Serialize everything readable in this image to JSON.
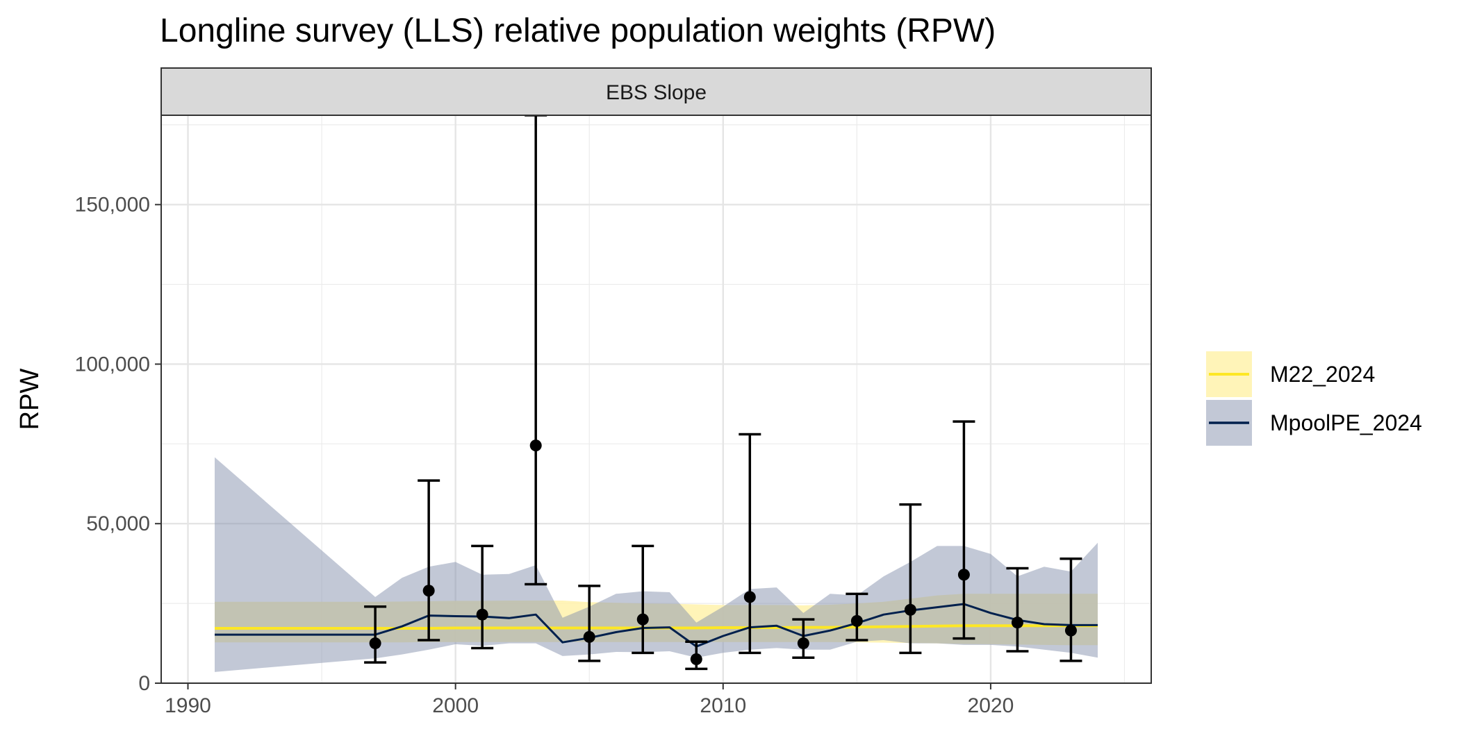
{
  "chart_data": {
    "type": "line",
    "title": "Longline survey (LLS) relative population weights (RPW)",
    "facet": "EBS Slope",
    "xlabel": "",
    "ylabel": "RPW",
    "xlim": [
      1989,
      2026
    ],
    "ylim": [
      0,
      178000
    ],
    "x_ticks": [
      1990,
      2000,
      2010,
      2020
    ],
    "x_tick_labels": [
      "1990",
      "2000",
      "2010",
      "2020"
    ],
    "y_ticks": [
      0,
      50000,
      100000,
      150000
    ],
    "y_tick_labels": [
      "0",
      "50,000",
      "100,000",
      "150,000"
    ],
    "grid": true,
    "legend_position": "right",
    "observed": [
      {
        "x": 1997,
        "y": 12500,
        "lo": 6500,
        "hi": 24000
      },
      {
        "x": 1999,
        "y": 29000,
        "lo": 13500,
        "hi": 63500
      },
      {
        "x": 2001,
        "y": 21500,
        "lo": 11000,
        "hi": 43000
      },
      {
        "x": 2003,
        "y": 74500,
        "lo": 31000,
        "hi": 178000
      },
      {
        "x": 2005,
        "y": 14500,
        "lo": 7000,
        "hi": 30500
      },
      {
        "x": 2007,
        "y": 20000,
        "lo": 9500,
        "hi": 43000
      },
      {
        "x": 2009,
        "y": 7500,
        "lo": 4500,
        "hi": 13000
      },
      {
        "x": 2011,
        "y": 27000,
        "lo": 9500,
        "hi": 78000
      },
      {
        "x": 2013,
        "y": 12500,
        "lo": 8000,
        "hi": 20000
      },
      {
        "x": 2015,
        "y": 19500,
        "lo": 13500,
        "hi": 28000
      },
      {
        "x": 2017,
        "y": 23000,
        "lo": 9500,
        "hi": 56000
      },
      {
        "x": 2019,
        "y": 34000,
        "lo": 14000,
        "hi": 82000
      },
      {
        "x": 2021,
        "y": 19000,
        "lo": 10000,
        "hi": 36000
      },
      {
        "x": 2023,
        "y": 16500,
        "lo": 7000,
        "hi": 39000
      }
    ],
    "series": [
      {
        "name": "M22_2024",
        "color": "#fde725",
        "fill": "#fff3b0",
        "x": [
          1991,
          1997,
          1998,
          1999,
          2000,
          2001,
          2002,
          2003,
          2004,
          2005,
          2006,
          2007,
          2008,
          2009,
          2010,
          2011,
          2012,
          2013,
          2014,
          2015,
          2016,
          2017,
          2018,
          2019,
          2020,
          2021,
          2022,
          2023,
          2024
        ],
        "values": [
          17200,
          17200,
          17200,
          17200,
          17300,
          17300,
          17300,
          17300,
          17300,
          17300,
          17300,
          17300,
          17300,
          17300,
          17400,
          17400,
          17400,
          17500,
          17500,
          17600,
          17700,
          17800,
          17900,
          18000,
          18000,
          18000,
          18000,
          18000,
          18000
        ],
        "lower": [
          12800,
          12800,
          12800,
          12900,
          12900,
          12900,
          12900,
          12900,
          12900,
          12900,
          12900,
          12900,
          12900,
          12900,
          12900,
          12900,
          12900,
          12900,
          12900,
          12800,
          12700,
          12600,
          12500,
          12300,
          12200,
          12100,
          12000,
          11900,
          11900
        ],
        "upper": [
          25500,
          25500,
          25600,
          25700,
          25800,
          25800,
          25900,
          25900,
          25900,
          25400,
          25200,
          25000,
          24900,
          24700,
          24500,
          24500,
          24500,
          24400,
          24600,
          25000,
          25500,
          26500,
          27500,
          28000,
          28000,
          28000,
          28000,
          28000,
          28000
        ]
      },
      {
        "name": "MpoolPE_2024",
        "color": "#00204d",
        "fill": "#8592ad",
        "x": [
          1991,
          1997,
          1998,
          1999,
          2000,
          2001,
          2002,
          2003,
          2004,
          2005,
          2006,
          2007,
          2008,
          2009,
          2010,
          2011,
          2012,
          2013,
          2014,
          2015,
          2016,
          2017,
          2018,
          2019,
          2020,
          2021,
          2022,
          2023,
          2024
        ],
        "values": [
          15200,
          15200,
          17800,
          21200,
          21000,
          20900,
          20400,
          21500,
          12800,
          14200,
          16000,
          17300,
          17500,
          11500,
          14800,
          17500,
          18000,
          14800,
          16500,
          18800,
          21500,
          22800,
          23800,
          24800,
          22000,
          19800,
          18500,
          18200,
          18200
        ],
        "lower": [
          3500,
          7800,
          9000,
          10500,
          12200,
          11700,
          12500,
          12500,
          8500,
          9000,
          9800,
          9700,
          10000,
          8000,
          9500,
          10500,
          11000,
          10500,
          10500,
          13000,
          13500,
          12500,
          12500,
          12000,
          12000,
          11500,
          10500,
          9500,
          8000
        ],
        "upper": [
          70800,
          27000,
          33000,
          36500,
          38000,
          34000,
          34200,
          37000,
          20500,
          24000,
          28000,
          28800,
          28500,
          19000,
          24000,
          29500,
          30000,
          22000,
          28000,
          27500,
          33500,
          38000,
          43000,
          43000,
          40500,
          33500,
          36500,
          35000,
          44000
        ]
      }
    ]
  }
}
